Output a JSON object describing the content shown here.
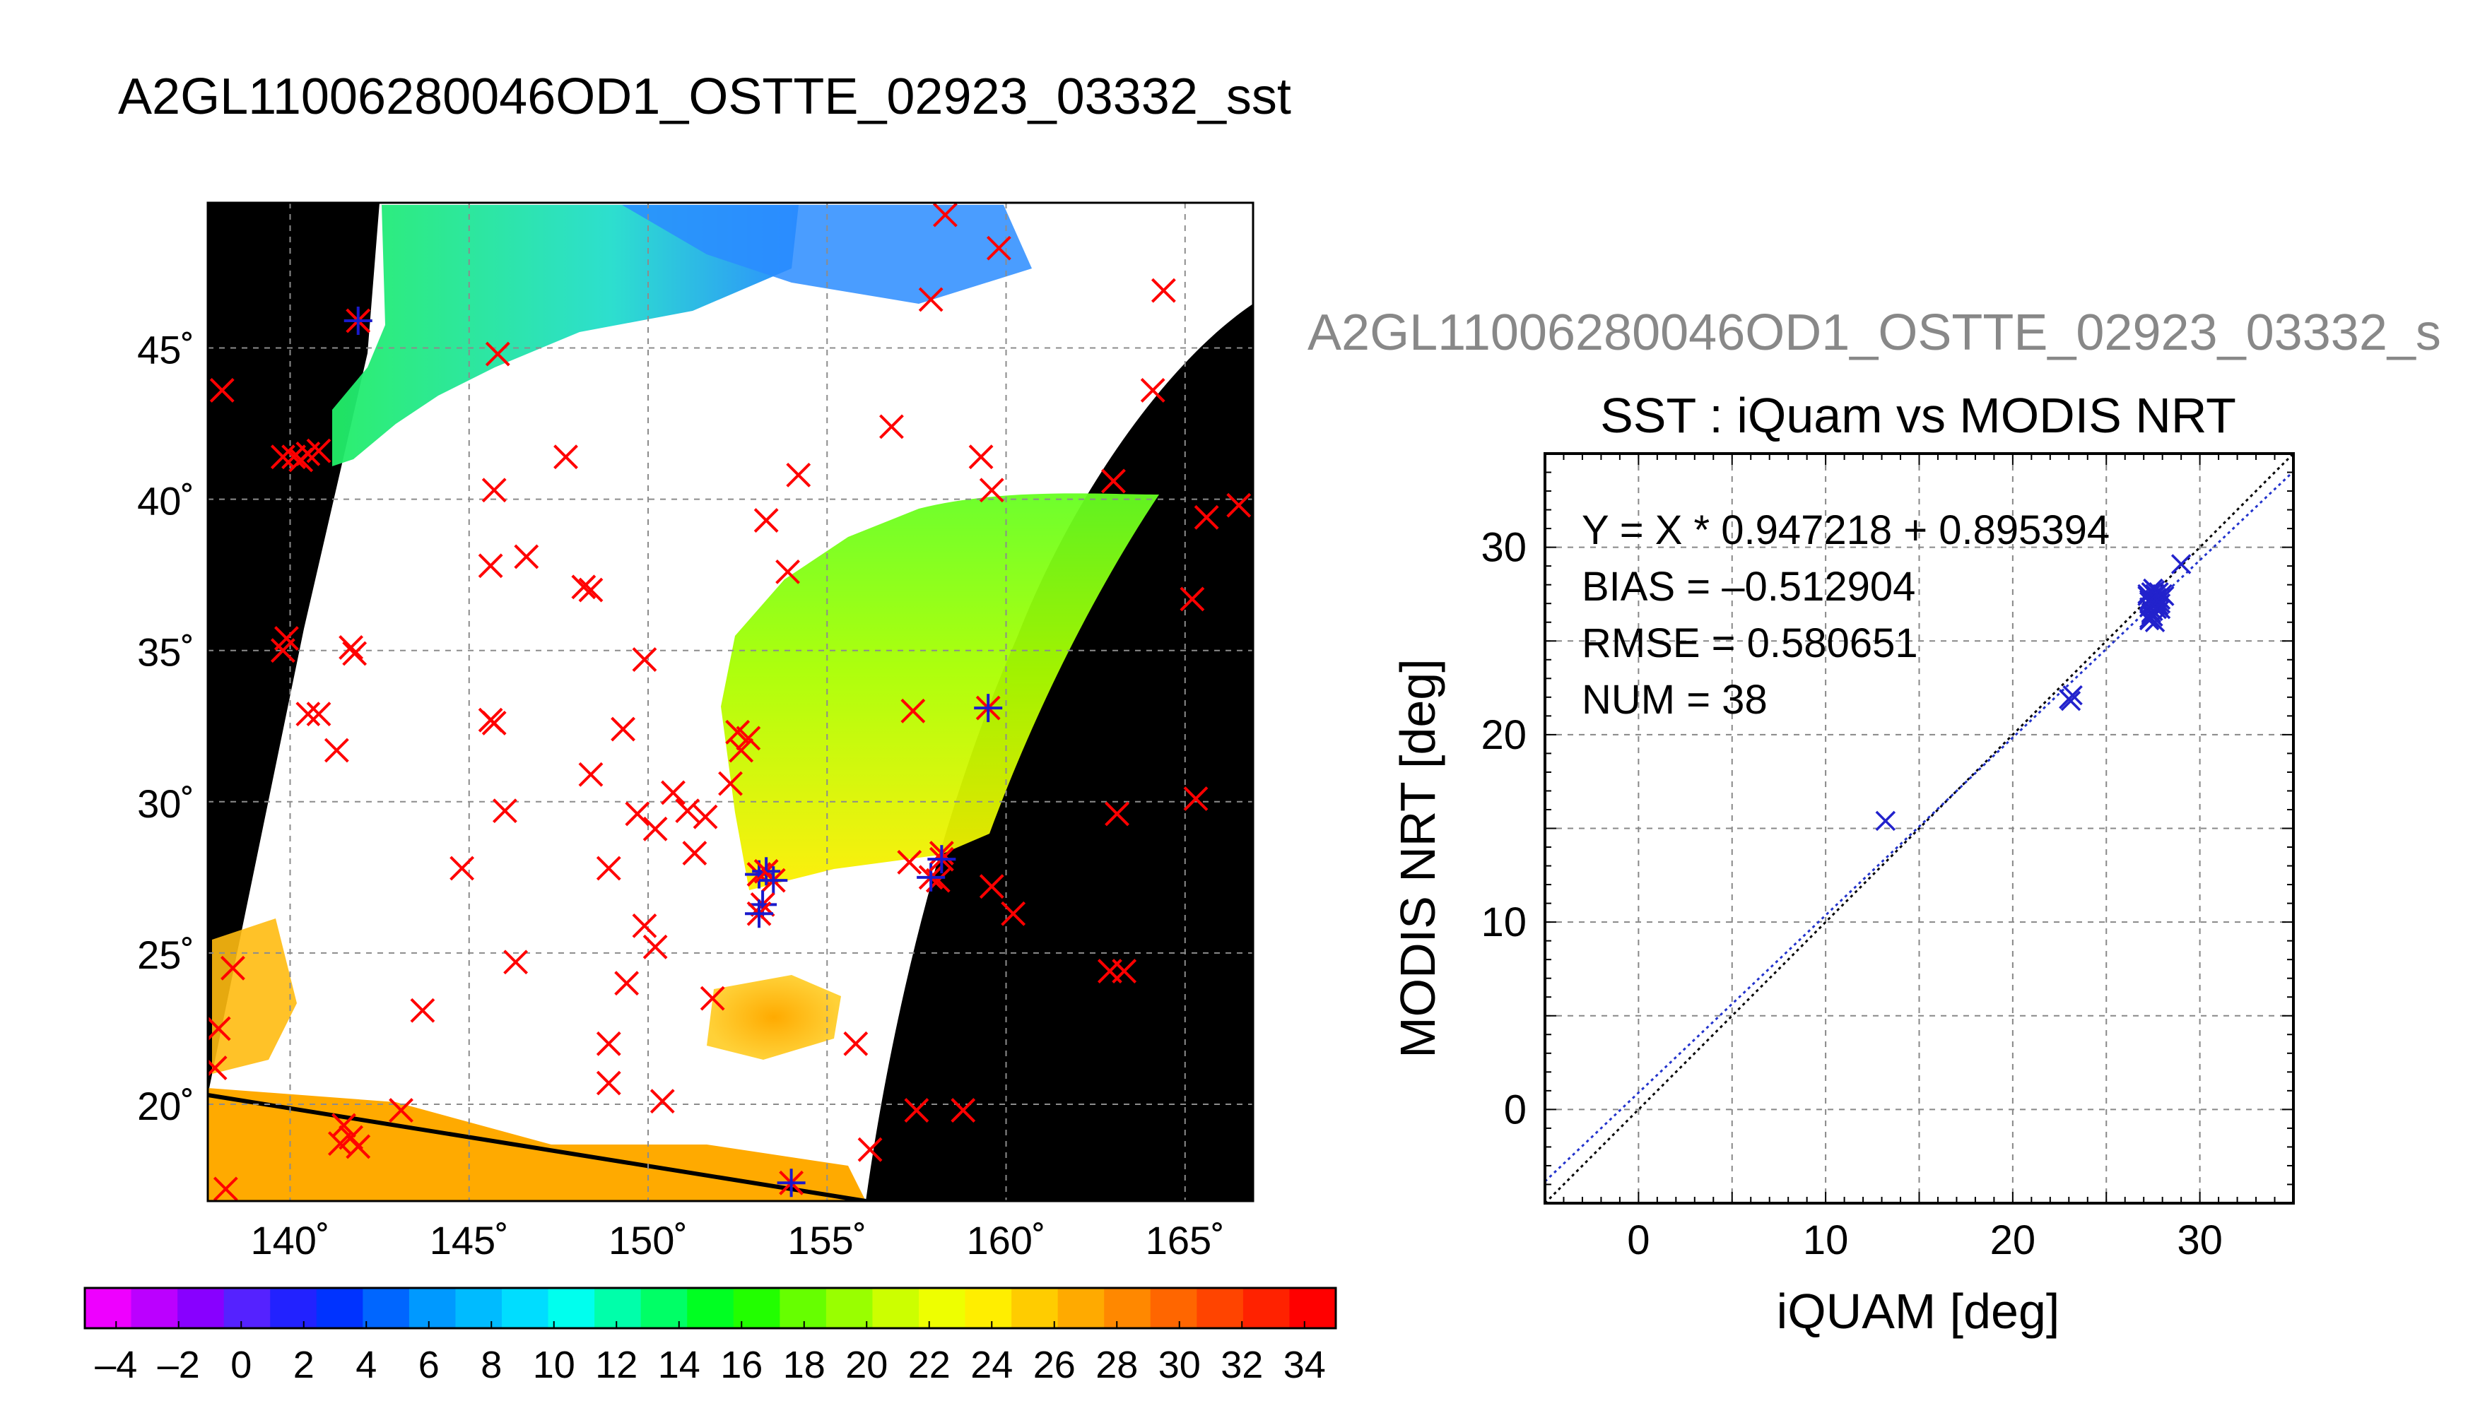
{
  "page": {
    "title": "A2GL11006280046OD1_OSTTE_02923_03332_sst",
    "right_title": "A2GL11006280046OD1_OSTTE_02923_03332_s"
  },
  "map": {
    "lat_labels": [
      "45˚",
      "40˚",
      "35˚",
      "30˚",
      "25˚",
      "20˚"
    ],
    "lon_labels": [
      "140˚",
      "145˚",
      "150˚",
      "155˚",
      "160˚",
      "165˚"
    ],
    "lat_values": [
      45,
      40,
      35,
      30,
      25,
      20
    ],
    "lon_values": [
      140,
      145,
      150,
      155,
      160,
      165
    ],
    "lon_range": [
      137.7,
      166.9
    ],
    "lat_range": [
      16.8,
      49.8
    ],
    "colors": {
      "land": "#000000",
      "cloud": "#ffffff",
      "grid": "#8c8c8c",
      "marker_red": "#ff0000",
      "marker_blue": "#1a1acc"
    },
    "iquam_points": [
      [
        138.1,
        43.6
      ],
      [
        139.8,
        41.4
      ],
      [
        140.1,
        41.4
      ],
      [
        140.5,
        41.5
      ],
      [
        140.3,
        41.3
      ],
      [
        140.8,
        41.6
      ],
      [
        139.9,
        35.4
      ],
      [
        139.8,
        35.0
      ],
      [
        141.7,
        35.1
      ],
      [
        141.8,
        34.9
      ],
      [
        140.5,
        32.9
      ],
      [
        140.8,
        32.9
      ],
      [
        141.3,
        31.7
      ],
      [
        138.4,
        24.5
      ],
      [
        138.0,
        22.5
      ],
      [
        137.9,
        21.2
      ],
      [
        141.5,
        19.3
      ],
      [
        141.7,
        18.9
      ],
      [
        141.4,
        18.7
      ],
      [
        141.9,
        18.6
      ],
      [
        143.1,
        19.8
      ],
      [
        143.7,
        23.1
      ],
      [
        144.8,
        27.8
      ],
      [
        145.6,
        32.7
      ],
      [
        145.7,
        32.6
      ],
      [
        146.0,
        29.7
      ],
      [
        146.3,
        24.7
      ],
      [
        145.7,
        40.3
      ],
      [
        145.6,
        37.8
      ],
      [
        146.6,
        38.1
      ],
      [
        145.8,
        44.8
      ],
      [
        147.7,
        41.4
      ],
      [
        148.2,
        37.1
      ],
      [
        148.4,
        37.0
      ],
      [
        148.4,
        30.9
      ],
      [
        148.9,
        27.8
      ],
      [
        148.9,
        22.0
      ],
      [
        148.9,
        20.7
      ],
      [
        149.3,
        32.4
      ],
      [
        149.4,
        24.0
      ],
      [
        149.7,
        29.6
      ],
      [
        149.9,
        34.7
      ],
      [
        149.9,
        25.9
      ],
      [
        150.2,
        29.1
      ],
      [
        150.2,
        25.2
      ],
      [
        150.4,
        20.1
      ],
      [
        150.7,
        30.3
      ],
      [
        151.1,
        29.7
      ],
      [
        151.3,
        28.3
      ],
      [
        151.6,
        29.5
      ],
      [
        151.8,
        23.5
      ],
      [
        152.5,
        32.3
      ],
      [
        152.6,
        31.7
      ],
      [
        152.8,
        32.1
      ],
      [
        152.3,
        30.6
      ],
      [
        153.3,
        39.3
      ],
      [
        153.9,
        37.6
      ],
      [
        154.2,
        40.8
      ],
      [
        155.8,
        22.0
      ],
      [
        156.2,
        18.5
      ],
      [
        156.8,
        42.4
      ],
      [
        157.3,
        28.0
      ],
      [
        157.4,
        33.0
      ],
      [
        157.5,
        19.8
      ],
      [
        158.1,
        27.4
      ],
      [
        158.2,
        28.3
      ],
      [
        158.3,
        49.4
      ],
      [
        157.9,
        46.6
      ],
      [
        159.3,
        41.4
      ],
      [
        159.6,
        40.3
      ],
      [
        159.6,
        27.2
      ],
      [
        159.8,
        48.3
      ],
      [
        160.2,
        26.3
      ],
      [
        158.8,
        19.8
      ],
      [
        163.0,
        40.6
      ],
      [
        163.1,
        29.6
      ],
      [
        162.9,
        24.4
      ],
      [
        163.3,
        24.4
      ],
      [
        164.1,
        43.6
      ],
      [
        164.4,
        46.9
      ],
      [
        165.3,
        30.1
      ],
      [
        165.2,
        36.7
      ],
      [
        165.6,
        39.4
      ],
      [
        166.5,
        39.8
      ],
      [
        138.2,
        17.2
      ]
    ],
    "match_points": [
      [
        141.9,
        45.9
      ],
      [
        153.1,
        27.6
      ],
      [
        153.3,
        27.7
      ],
      [
        153.5,
        27.4
      ],
      [
        153.2,
        26.6
      ],
      [
        153.1,
        26.3
      ],
      [
        154.0,
        17.4
      ],
      [
        157.9,
        27.5
      ],
      [
        158.2,
        28.1
      ],
      [
        159.5,
        33.1
      ]
    ]
  },
  "colorbar": {
    "tick_labels": [
      "–4",
      "–2",
      "0",
      "2",
      "4",
      "6",
      "8",
      "10",
      "12",
      "14",
      "16",
      "18",
      "20",
      "22",
      "24",
      "26",
      "28",
      "30",
      "32",
      "34"
    ],
    "range": [
      -5,
      35
    ],
    "colors": [
      "#ee00ff",
      "#bb00ff",
      "#8800ff",
      "#5522ff",
      "#2222ff",
      "#0033ff",
      "#0066ff",
      "#0099ff",
      "#00bbff",
      "#00ddff",
      "#00ffee",
      "#00ffaa",
      "#00ff66",
      "#00ff22",
      "#22ff00",
      "#66ff00",
      "#99ff00",
      "#ccff00",
      "#eeff00",
      "#ffee00",
      "#ffcc00",
      "#ffaa00",
      "#ff8800",
      "#ff6600",
      "#ff4400",
      "#ff2200",
      "#ff0000"
    ]
  },
  "chart_data": {
    "type": "scatter",
    "title": "SST : iQuam vs MODIS NRT",
    "xlabel": "iQUAM [deg]",
    "ylabel": "MODIS NRT [deg]",
    "xlim": [
      -5,
      35
    ],
    "ylim": [
      -5,
      35
    ],
    "x_ticks": [
      0,
      10,
      20,
      30
    ],
    "y_ticks": [
      0,
      10,
      20,
      30
    ],
    "x_tick_labels": [
      "0",
      "10",
      "20",
      "30"
    ],
    "y_tick_labels": [
      "0",
      "10",
      "20",
      "30"
    ],
    "grid": true,
    "annotations": [
      "Y = X * 0.947218 + 0.895394",
      "BIAS = –0.512904",
      "RMSE = 0.580651",
      "NUM = 38"
    ],
    "fit": {
      "slope": 0.947218,
      "intercept": 0.895394
    },
    "series": [
      {
        "color": "#2222cc",
        "x": [
          13.2,
          23.0,
          23.2,
          23.1,
          27.2,
          27.3,
          27.4,
          27.5,
          27.3,
          27.6,
          27.7,
          27.4,
          27.5,
          27.8,
          27.6,
          27.3,
          27.9,
          28.0,
          27.5,
          27.6,
          27.7,
          27.4,
          27.8,
          27.2,
          27.6,
          27.5,
          27.9,
          27.3,
          27.6,
          27.8,
          27.4,
          27.7,
          28.1,
          27.5,
          27.6,
          27.9,
          29.0,
          27.3
        ],
        "y": [
          15.4,
          21.9,
          22.1,
          21.8,
          27.5,
          27.2,
          27.6,
          27.0,
          26.8,
          27.4,
          27.3,
          26.5,
          26.3,
          27.6,
          26.9,
          26.1,
          27.2,
          27.5,
          26.6,
          27.7,
          27.1,
          26.4,
          27.3,
          27.4,
          26.0,
          27.8,
          26.7,
          26.2,
          27.5,
          26.9,
          27.0,
          26.7,
          27.4,
          26.9,
          27.2,
          27.0,
          29.1,
          27.1
        ]
      }
    ]
  }
}
